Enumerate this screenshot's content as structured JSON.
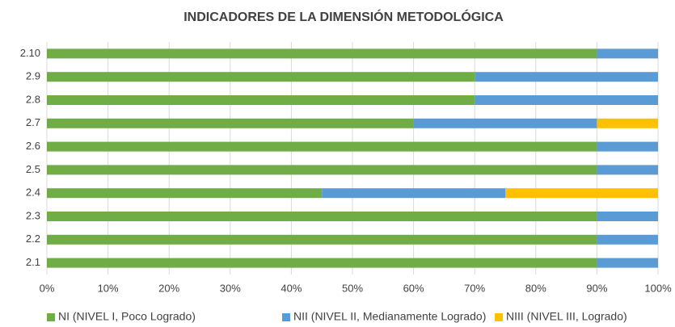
{
  "chart_data": {
    "type": "stacked_barh",
    "title": "INDICADORES DE LA DIMENSIÓN  METODOLÓGICA",
    "categories": [
      "2.1",
      "2.2",
      "2.3",
      "2.4",
      "2.5",
      "2.6",
      "2.7",
      "2.8",
      "2.9",
      "2.10"
    ],
    "series": [
      {
        "name": "NI (NIVEL I, Poco Logrado)",
        "color": "#70ad47",
        "values": [
          90,
          90,
          90,
          45,
          90,
          90,
          60,
          70,
          70,
          90
        ]
      },
      {
        "name": "NII (NIVEL II, Medianamente Logrado)",
        "color": "#5b9bd5",
        "values": [
          10,
          10,
          10,
          30,
          10,
          10,
          30,
          30,
          30,
          10
        ]
      },
      {
        "name": "NIII (NIVEL III, Logrado)",
        "color": "#ffc000",
        "values": [
          0,
          0,
          0,
          25,
          0,
          0,
          10,
          0,
          0,
          0
        ]
      }
    ],
    "xlim": [
      0,
      100
    ],
    "xticks": [
      {
        "value": 0,
        "label": "0%"
      },
      {
        "value": 10,
        "label": "10%"
      },
      {
        "value": 20,
        "label": "20%"
      },
      {
        "value": 30,
        "label": "30%"
      },
      {
        "value": 40,
        "label": "40%"
      },
      {
        "value": 50,
        "label": "50%"
      },
      {
        "value": 60,
        "label": "60%"
      },
      {
        "value": 70,
        "label": "70%"
      },
      {
        "value": 80,
        "label": "80%"
      },
      {
        "value": 90,
        "label": "90%"
      },
      {
        "value": 100,
        "label": "100%"
      }
    ],
    "grid": true,
    "legend": "bottom"
  }
}
